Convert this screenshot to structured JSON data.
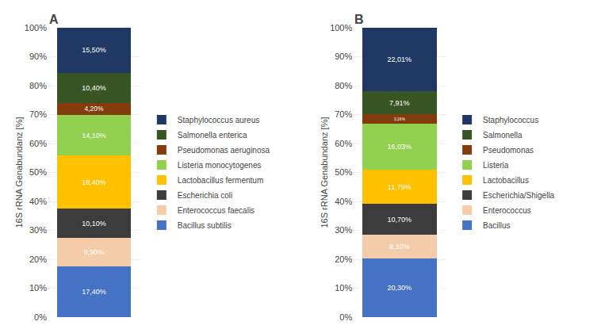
{
  "chart_data": [
    {
      "type": "bar",
      "title": "A",
      "stacked": true,
      "categories": [
        null
      ],
      "series": [
        {
          "name": "Bacillus subtilis",
          "color": "#4472C4",
          "values": [
            17.4
          ],
          "value_labels": [
            "17,40%"
          ]
        },
        {
          "name": "Enterococcus faecalis",
          "color": "#F4CCAA",
          "values": [
            9.9
          ],
          "value_labels": [
            "9,90%"
          ]
        },
        {
          "name": "Escherichia coli",
          "color": "#3C3C3C",
          "values": [
            10.1
          ],
          "value_labels": [
            "10,10%"
          ]
        },
        {
          "name": "Lactobacillus fermentum",
          "color": "#FFC000",
          "values": [
            18.4
          ],
          "value_labels": [
            "18,40%"
          ]
        },
        {
          "name": "Listeria monocytogenes",
          "color": "#92D050",
          "values": [
            14.1
          ],
          "value_labels": [
            "14,10%"
          ]
        },
        {
          "name": "Pseudomonas aeruginosa",
          "color": "#843C0C",
          "values": [
            4.2
          ],
          "value_labels": [
            "4,20%"
          ]
        },
        {
          "name": "Salmonella enterica",
          "color": "#375623",
          "values": [
            10.4
          ],
          "value_labels": [
            "10,40%"
          ]
        },
        {
          "name": "Staphylococcus aureus",
          "color": "#1F3864",
          "values": [
            15.5
          ],
          "value_labels": [
            "15,50%"
          ]
        }
      ],
      "ylabel": "16S rRNA Genabundanz [%]",
      "ylim": [
        0,
        100
      ],
      "yticks": [
        {
          "value": 0,
          "label": "0%"
        },
        {
          "value": 10,
          "label": "10%"
        },
        {
          "value": 20,
          "label": "20%"
        },
        {
          "value": 30,
          "label": "30%"
        },
        {
          "value": 40,
          "label": "40%"
        },
        {
          "value": 50,
          "label": "50%"
        },
        {
          "value": 60,
          "label": "60%"
        },
        {
          "value": 70,
          "label": "70%"
        },
        {
          "value": 80,
          "label": "80%"
        },
        {
          "value": 90,
          "label": "90%"
        },
        {
          "value": 100,
          "label": "100%"
        }
      ],
      "grid": true,
      "legend": "right",
      "data_labels": true,
      "tick_labels": "y"
    },
    {
      "type": "bar",
      "title": "B",
      "stacked": true,
      "categories": [
        null
      ],
      "series": [
        {
          "name": "Bacillus",
          "color": "#4472C4",
          "values": [
            20.3
          ],
          "value_labels": [
            "20,30%"
          ]
        },
        {
          "name": "Enterococcus",
          "color": "#F4CCAA",
          "values": [
            8.1
          ],
          "value_labels": [
            "8,10%"
          ]
        },
        {
          "name": "Escherichia/Shigella",
          "color": "#3C3C3C",
          "values": [
            10.7
          ],
          "value_labels": [
            "10,70%"
          ]
        },
        {
          "name": "Lactobacillus",
          "color": "#FFC000",
          "values": [
            11.79
          ],
          "value_labels": [
            "11,79%"
          ]
        },
        {
          "name": "Listeria",
          "color": "#92D050",
          "values": [
            16.03
          ],
          "value_labels": [
            "16,03%"
          ]
        },
        {
          "name": "Pseudomonas",
          "color": "#843C0C",
          "values": [
            3.16
          ],
          "value_labels": [
            "3,16%"
          ]
        },
        {
          "name": "Salmonella",
          "color": "#375623",
          "values": [
            7.91
          ],
          "value_labels": [
            "7,91%"
          ]
        },
        {
          "name": "Staphylococcus",
          "color": "#1F3864",
          "values": [
            22.01
          ],
          "value_labels": [
            "22,01%"
          ]
        }
      ],
      "ylabel": "16S rRNA Genabundanz [%]",
      "ylim": [
        0,
        100
      ],
      "yticks": [
        {
          "value": 0,
          "label": "0%"
        },
        {
          "value": 10,
          "label": "10%"
        },
        {
          "value": 20,
          "label": "20%"
        },
        {
          "value": 30,
          "label": "30%"
        },
        {
          "value": 40,
          "label": "40%"
        },
        {
          "value": 50,
          "label": "50%"
        },
        {
          "value": 60,
          "label": "60%"
        },
        {
          "value": 70,
          "label": "70%"
        },
        {
          "value": 80,
          "label": "80%"
        },
        {
          "value": 90,
          "label": "90%"
        },
        {
          "value": 100,
          "label": "100%"
        }
      ],
      "grid": true,
      "legend": "right",
      "data_labels": true,
      "tick_labels": "y"
    }
  ]
}
